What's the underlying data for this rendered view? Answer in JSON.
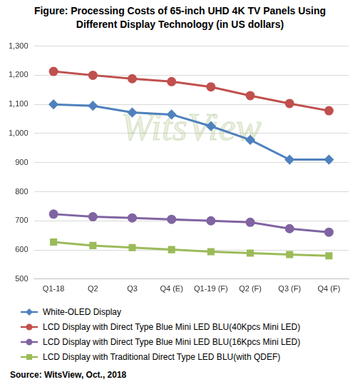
{
  "chart_data": {
    "type": "line",
    "title": "Figure:  Processing Costs of 65-inch UHD 4K TV Panels Using Different Display Technology (in US dollars)",
    "categories": [
      "Q1-18",
      "Q2",
      "Q3",
      "Q4 (E)",
      "Q1-19 (F)",
      "Q2 (F)",
      "Q3 (F)",
      "Q4 (F)"
    ],
    "series": [
      {
        "name": "White-OLED Display",
        "color": "#4f81bd",
        "marker": "diamond",
        "values": [
          1100,
          1095,
          1072,
          1065,
          1025,
          978,
          910,
          910
        ]
      },
      {
        "name": "LCD Display with Direct Type Blue Mini LED BLU(40Kpcs Mini LED)",
        "color": "#c0504d",
        "marker": "circle",
        "values": [
          1213,
          1200,
          1188,
          1178,
          1160,
          1130,
          1103,
          1078
        ]
      },
      {
        "name": "LCD Display with Direct Type Blue Mini LED BLU(16Kpcs Mini LED)",
        "color": "#8064a2",
        "marker": "circle",
        "values": [
          723,
          714,
          710,
          705,
          700,
          695,
          673,
          661
        ]
      },
      {
        "name": "LCD Display with Traditional Direct Type LED BLU(with QDEF)",
        "color": "#9bbb59",
        "marker": "square",
        "values": [
          627,
          615,
          608,
          601,
          594,
          589,
          584,
          580
        ]
      }
    ],
    "ylim": [
      500,
      1300
    ],
    "yticks": [
      500,
      600,
      700,
      800,
      900,
      {
        "value": 1000,
        "label": "1,000"
      },
      {
        "value": 1100,
        "label": "1,100"
      },
      {
        "value": 1200,
        "label": "1,200"
      },
      {
        "value": 1300,
        "label": "1,300"
      }
    ],
    "grid": true,
    "legend": "bottom",
    "source": "Source: WitsView, Oct., 2018",
    "watermark": "WitsView"
  }
}
